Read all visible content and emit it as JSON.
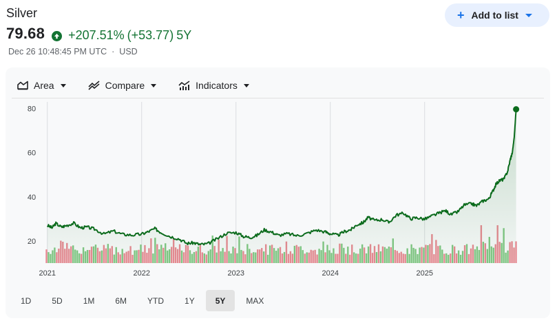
{
  "quote": {
    "name": "Silver",
    "price": "79.68",
    "change_pct": "+207.51%",
    "change_abs": "(+53.77)",
    "period": "5Y",
    "timestamp": "Dec 26 10:48:45 PM UTC",
    "separator": "·",
    "currency": "USD"
  },
  "add_to_list": {
    "label": "Add to list",
    "icon": "plus-icon"
  },
  "toolbar": {
    "area_label": "Area",
    "compare_label": "Compare",
    "indicators_label": "Indicators"
  },
  "ranges": [
    "1D",
    "5D",
    "1M",
    "6M",
    "YTD",
    "1Y",
    "5Y",
    "MAX"
  ],
  "active_range": "5Y",
  "colors": {
    "up": "#137333",
    "line": "#0b6b1c",
    "vol_up": "#81c784",
    "vol_down": "#e88a93",
    "accent": "#1a73e8",
    "pill_bg": "#e8f0fe"
  },
  "chart_data": {
    "type": "area",
    "x_ticks": [
      "2021",
      "2022",
      "2023",
      "2024",
      "2025"
    ],
    "y_ticks": [
      20,
      40,
      60,
      80
    ],
    "ylim": [
      10,
      83
    ],
    "x_range": [
      2020.98,
      2025.98
    ],
    "series": [
      {
        "x": [
          2021.0,
          2021.05,
          2021.09,
          2021.15,
          2021.2,
          2021.28,
          2021.35,
          2021.42,
          2021.5,
          2021.6,
          2021.7,
          2021.8,
          2021.9,
          2022.0,
          2022.07,
          2022.14,
          2022.2,
          2022.3,
          2022.4,
          2022.48,
          2022.55,
          2022.62,
          2022.7,
          2022.8,
          2022.9,
          2023.0,
          2023.08,
          2023.15,
          2023.22,
          2023.3,
          2023.38,
          2023.45,
          2023.55,
          2023.65,
          2023.75,
          2023.85,
          2023.95,
          2024.0,
          2024.08,
          2024.15,
          2024.22,
          2024.28,
          2024.35,
          2024.4,
          2024.47,
          2024.55,
          2024.62,
          2024.7,
          2024.78,
          2024.85,
          2024.92,
          2025.0,
          2025.08,
          2025.15,
          2025.22,
          2025.28,
          2025.35,
          2025.42,
          2025.5,
          2025.55,
          2025.62,
          2025.68,
          2025.72,
          2025.76,
          2025.8,
          2025.84,
          2025.88,
          2025.91,
          2025.93,
          2025.95,
          2025.97
        ],
        "y": [
          27.1,
          26.0,
          28.0,
          26.3,
          27.0,
          28.1,
          26.0,
          26.3,
          25.4,
          23.2,
          24.5,
          23.0,
          22.7,
          23.1,
          24.2,
          25.6,
          24.0,
          22.1,
          20.9,
          18.9,
          19.2,
          18.4,
          18.7,
          21.0,
          23.5,
          23.9,
          22.1,
          21.6,
          22.5,
          25.1,
          24.0,
          22.6,
          23.3,
          22.4,
          23.4,
          25.0,
          24.1,
          23.3,
          22.6,
          24.3,
          25.2,
          27.3,
          28.4,
          30.7,
          29.3,
          29.8,
          28.4,
          31.8,
          32.6,
          30.1,
          30.6,
          29.9,
          31.4,
          32.6,
          33.8,
          32.0,
          33.2,
          36.3,
          36.9,
          36.0,
          38.2,
          39.1,
          42.4,
          46.0,
          47.5,
          48.0,
          51.6,
          57.3,
          60.1,
          67.0,
          79.68
        ]
      }
    ],
    "volume": {
      "note": "relative volume bars, green = up day, red = down day"
    }
  }
}
